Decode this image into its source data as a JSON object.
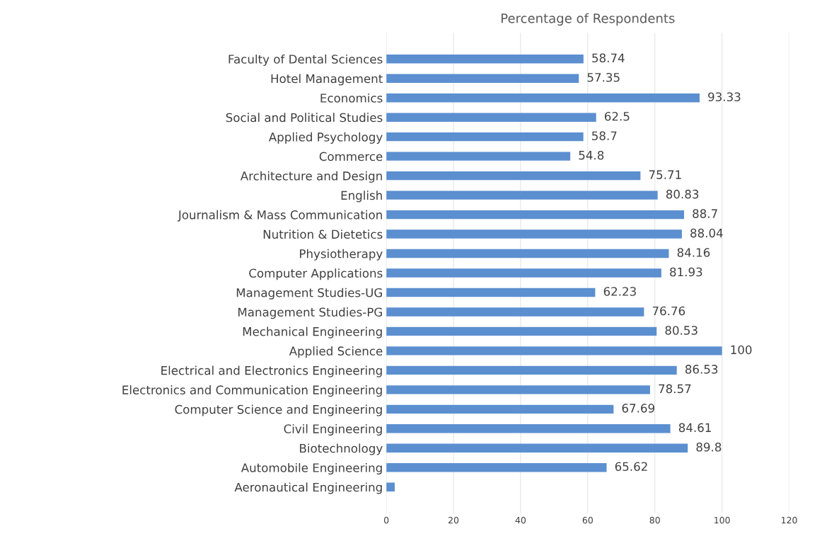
{
  "chart_data": {
    "type": "bar",
    "orientation": "horizontal",
    "title": "Percentage of Respondents",
    "categories": [
      "Faculty of Dental Sciences",
      "Hotel Management",
      "Economics",
      "Social and Political Studies",
      "Applied Psychology",
      "Commerce",
      "Architecture and Design",
      "English",
      "Journalism & Mass Communication",
      "Nutrition & Dietetics",
      "Physiotherapy",
      "Computer Applications",
      "Management Studies-UG",
      "Management Studies-PG",
      "Mechanical Engineering",
      "Applied Science",
      "Electrical and Electronics Engineering",
      "Electronics and Communication Engineering",
      "Computer Science and Engineering",
      "Civil Engineering",
      "Biotechnology",
      "Automobile Engineering",
      "Aeronautical Engineering"
    ],
    "values": [
      58.74,
      57.35,
      93.33,
      62.5,
      58.7,
      54.8,
      75.71,
      80.83,
      88.7,
      88.04,
      84.16,
      81.93,
      62.23,
      76.76,
      80.53,
      100,
      86.53,
      78.57,
      67.69,
      84.61,
      89.8,
      65.62,
      2.5
    ],
    "value_labels": [
      "58.74",
      "57.35",
      "93.33",
      "62.5",
      "58.7",
      "54.8",
      "75.71",
      "80.83",
      "88.7",
      "88.04",
      "84.16",
      "81.93",
      "62.23",
      "76.76",
      "80.53",
      "100",
      "86.53",
      "78.57",
      "67.69",
      "84.61",
      "89.8",
      "65.62",
      null
    ],
    "color": "#5b8fd0",
    "xlim": [
      0,
      120
    ],
    "xticks": [
      0,
      20,
      40,
      60,
      80,
      100,
      120
    ],
    "grid": "x"
  }
}
